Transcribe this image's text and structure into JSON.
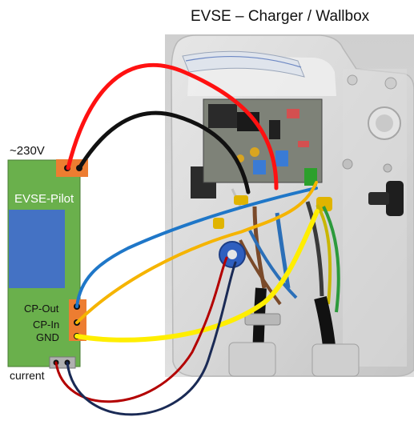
{
  "title": "EVSE – Charger / Wallbox",
  "module": {
    "name": "EVSE-Pilot",
    "supply_label": "~230V",
    "terminals": [
      "CP-Out",
      "CP-In",
      "GND"
    ],
    "current_label": "current"
  },
  "colors": {
    "module_green": "#6ab04c",
    "module_blue": "#4472c4",
    "terminal_orange": "#ed7d31",
    "wire_red": "#ff1111",
    "wire_black": "#111111",
    "wire_blue": "#1f77c8",
    "wire_orange": "#f5b400",
    "wire_yellow": "#ffee00",
    "wire_darkred": "#b30000",
    "wire_navy": "#1a2a55"
  }
}
